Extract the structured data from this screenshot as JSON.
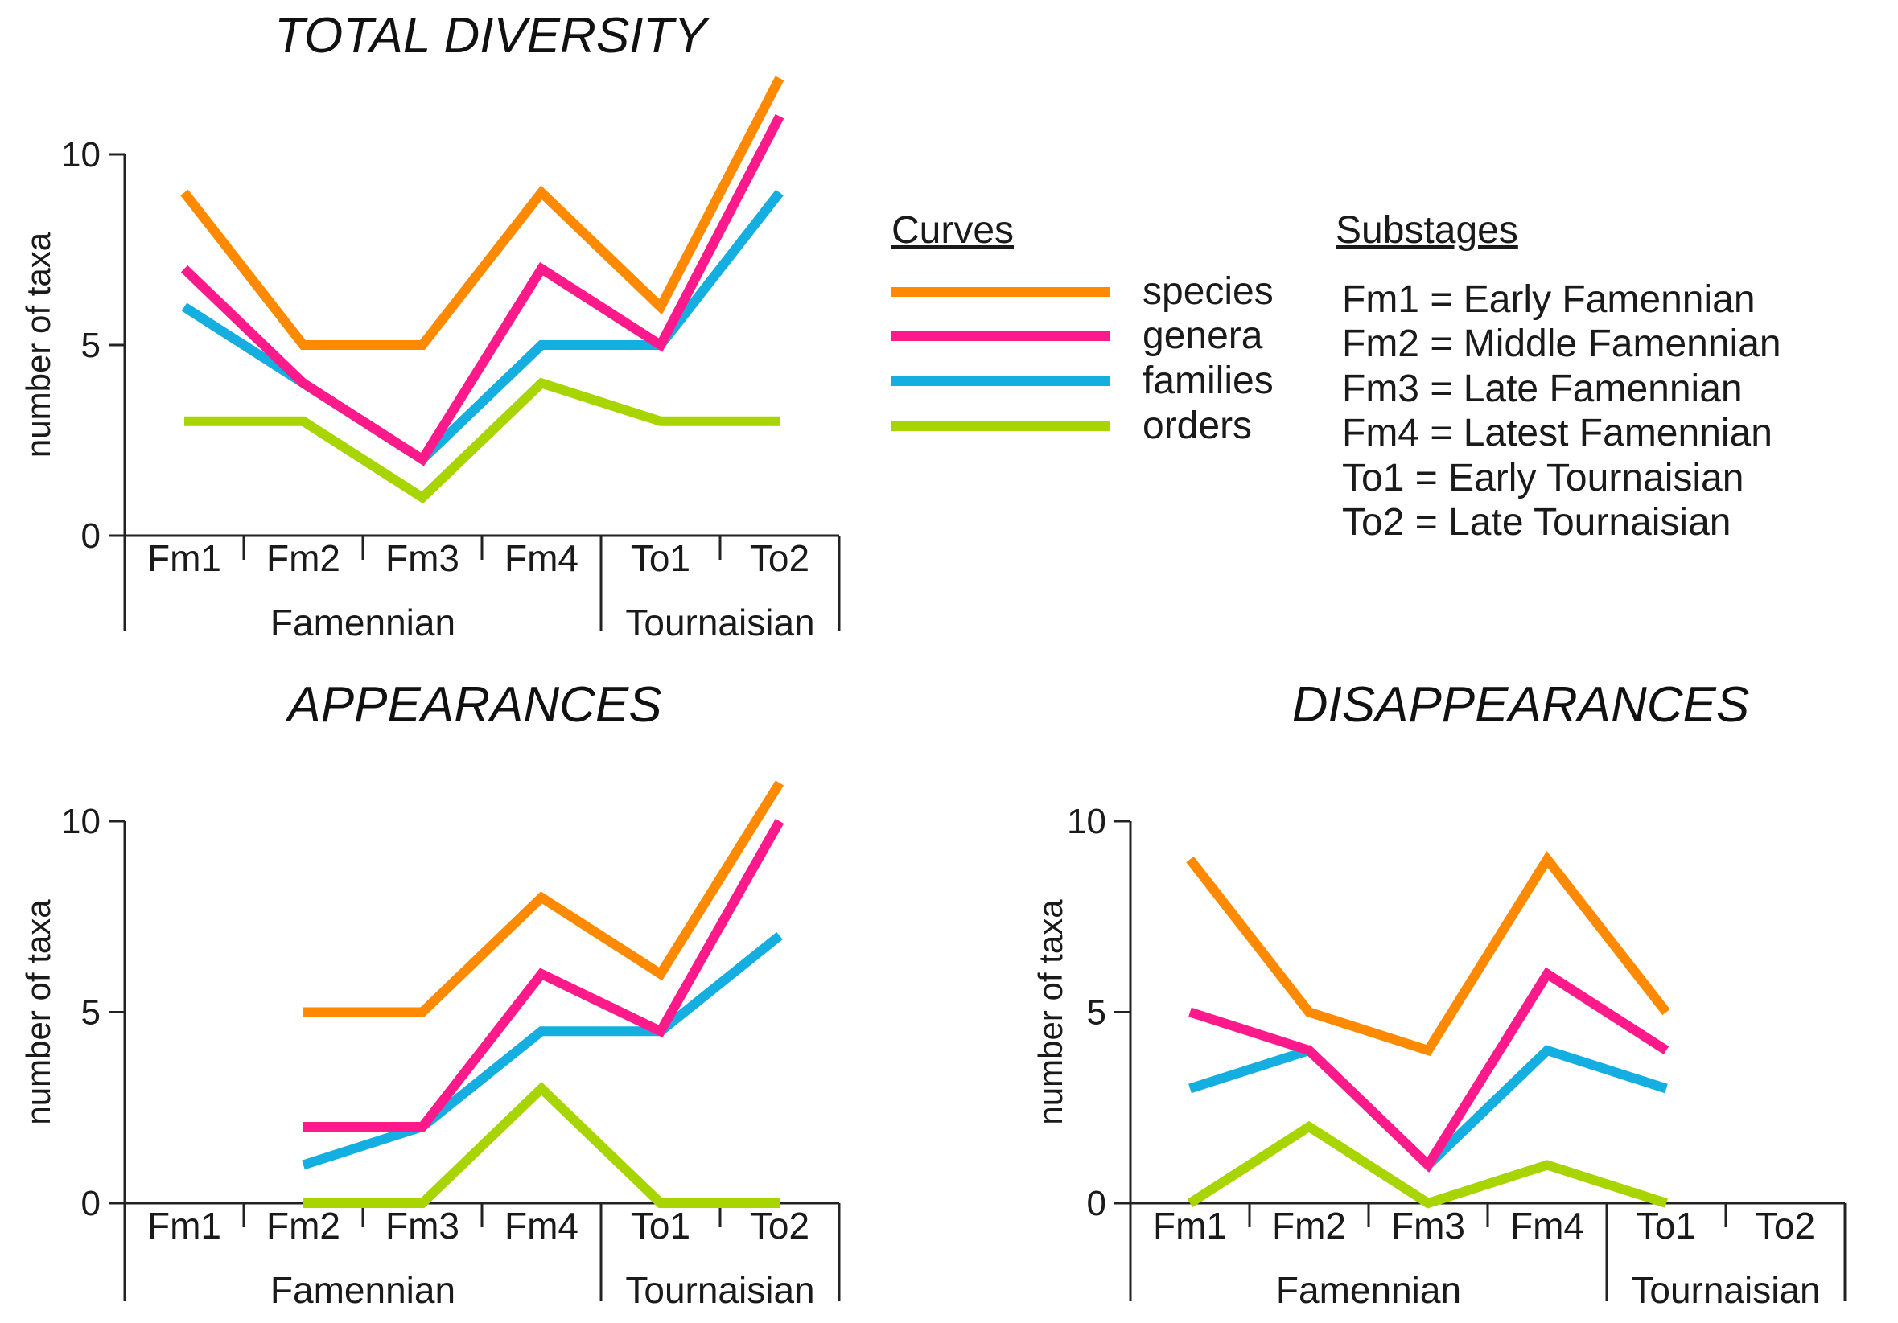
{
  "chart_data": [
    {
      "type": "line",
      "title": "TOTAL DIVERSITY",
      "ylabel": "number of taxa",
      "ylim": [
        0,
        10
      ],
      "yticks": [
        "0",
        "5",
        "10"
      ],
      "categories": [
        "Fm1",
        "Fm2",
        "Fm3",
        "Fm4",
        "To1",
        "To2"
      ],
      "stages": [
        {
          "label": "Famennian",
          "span": [
            0,
            3
          ]
        },
        {
          "label": "Tournaisian",
          "span": [
            4,
            5
          ]
        }
      ],
      "series": [
        {
          "name": "species",
          "values": [
            9,
            5,
            5,
            9,
            6,
            12
          ]
        },
        {
          "name": "genera",
          "values": [
            7,
            4,
            2,
            7,
            5,
            11
          ]
        },
        {
          "name": "families",
          "values": [
            6,
            4,
            2,
            5,
            5,
            9
          ]
        },
        {
          "name": "orders",
          "values": [
            3,
            3,
            1,
            4,
            3,
            3
          ]
        }
      ]
    },
    {
      "type": "line",
      "title": "APPEARANCES",
      "ylabel": "number of taxa",
      "ylim": [
        0,
        10
      ],
      "yticks": [
        "0",
        "5",
        "10"
      ],
      "categories": [
        "Fm1",
        "Fm2",
        "Fm3",
        "Fm4",
        "To1",
        "To2"
      ],
      "stages": [
        {
          "label": "Famennian",
          "span": [
            0,
            3
          ]
        },
        {
          "label": "Tournaisian",
          "span": [
            4,
            5
          ]
        }
      ],
      "series": [
        {
          "name": "species",
          "values": [
            null,
            5,
            5,
            8,
            6,
            11
          ]
        },
        {
          "name": "genera",
          "values": [
            null,
            2,
            2,
            6,
            4.5,
            10
          ]
        },
        {
          "name": "families",
          "values": [
            null,
            1,
            2,
            4.5,
            4.5,
            7
          ]
        },
        {
          "name": "orders",
          "values": [
            null,
            0,
            0,
            3,
            0,
            0
          ]
        }
      ]
    },
    {
      "type": "line",
      "title": "DISAPPEARANCES",
      "ylabel": "number of taxa",
      "ylim": [
        0,
        10
      ],
      "yticks": [
        "0",
        "5",
        "10"
      ],
      "categories": [
        "Fm1",
        "Fm2",
        "Fm3",
        "Fm4",
        "To1",
        "To2"
      ],
      "stages": [
        {
          "label": "Famennian",
          "span": [
            0,
            3
          ]
        },
        {
          "label": "Tournaisian",
          "span": [
            4,
            5
          ]
        }
      ],
      "series": [
        {
          "name": "species",
          "values": [
            9,
            5,
            4,
            9,
            5,
            null
          ]
        },
        {
          "name": "genera",
          "values": [
            5,
            4,
            1,
            6,
            4,
            null
          ]
        },
        {
          "name": "families",
          "values": [
            3,
            4,
            1,
            4,
            3,
            null
          ]
        },
        {
          "name": "orders",
          "values": [
            0,
            2,
            0,
            1,
            0,
            null
          ]
        }
      ]
    }
  ],
  "colors": {
    "species": "#ff8a00",
    "genera": "#ff1a8c",
    "families": "#14aee0",
    "orders": "#a8d400"
  },
  "legend": {
    "curves_heading": "Curves",
    "curves": [
      "species",
      "genera",
      "families",
      "orders"
    ],
    "substages_heading": "Substages",
    "substages": [
      "Fm1 = Early Famennian",
      "Fm2 = Middle Famennian",
      "Fm3 = Late Famennian",
      "Fm4 = Latest Famennian",
      "To1 = Early Tournaisian",
      "To2 = Late Tournaisian"
    ]
  }
}
